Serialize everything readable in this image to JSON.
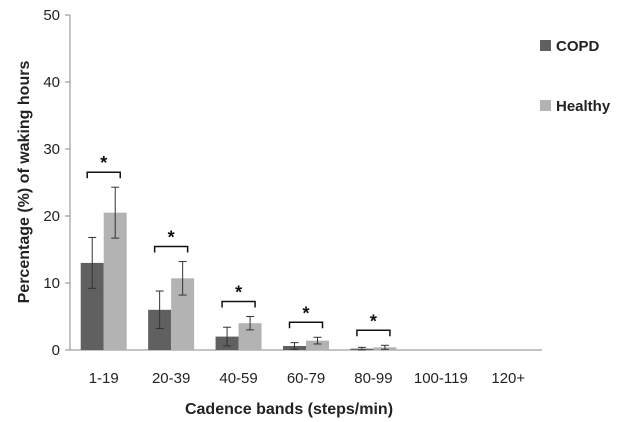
{
  "chart_data": {
    "type": "bar",
    "title": "",
    "xlabel": "Cadence bands (steps/min)",
    "ylabel": "Percentage (%) of waking hours",
    "ylim": [
      0,
      50
    ],
    "yticks": [
      "0",
      "10",
      "20",
      "30",
      "40",
      "50"
    ],
    "categories": [
      "1-19",
      "20-39",
      "40-59",
      "60-79",
      "80-99",
      "100-119",
      "120+"
    ],
    "series": [
      {
        "name": "COPD",
        "color": "#606060",
        "values": [
          13.0,
          6.0,
          2.0,
          0.6,
          0.2,
          0.0,
          0.0
        ],
        "errors": [
          3.8,
          2.8,
          1.4,
          0.5,
          0.2,
          0.0,
          0.0
        ]
      },
      {
        "name": "Healthy",
        "color": "#b3b3b3",
        "values": [
          20.5,
          10.7,
          4.0,
          1.4,
          0.4,
          0.0,
          0.0
        ],
        "errors": [
          3.8,
          2.5,
          1.0,
          0.5,
          0.3,
          0.0,
          0.0
        ]
      }
    ],
    "significance": [
      {
        "category": "1-19",
        "label": "*"
      },
      {
        "category": "20-39",
        "label": "*"
      },
      {
        "category": "40-59",
        "label": "*"
      },
      {
        "category": "60-79",
        "label": "*"
      },
      {
        "category": "80-99",
        "label": "*"
      }
    ],
    "legend": "right",
    "grid": false
  }
}
